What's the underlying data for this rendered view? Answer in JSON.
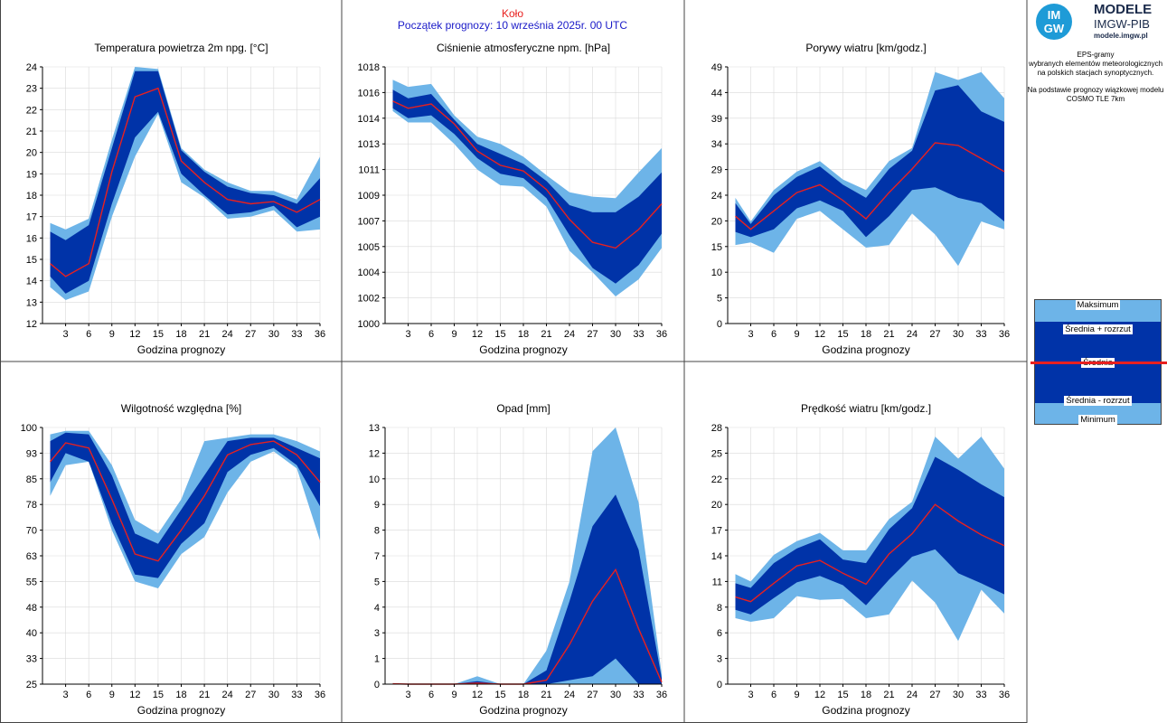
{
  "header": {
    "station": "Koło",
    "forecast_start": "Początek prognozy: 10 września 2025r. 00 UTC"
  },
  "logo": {
    "circle_top": "IM",
    "circle_bottom": "GW",
    "line1": "MODELE",
    "line2": "IMGW-PIB",
    "line3": "modele.imgw.pl"
  },
  "description": {
    "lines1": [
      "EPS-gramy",
      "wybranych elementów meteorologicznych",
      "na polskich stacjach  synoptycznych."
    ],
    "lines2": [
      "Na podstawie prognozy wiązkowej modelu",
      "COSMO TLE 7km"
    ]
  },
  "legend": {
    "max": "Maksimum",
    "mean_plus": "Średnia + rozrzut",
    "mean": "Średnia",
    "mean_minus": "Średnia - rozrzut",
    "min": "Minimum"
  },
  "colors": {
    "outer_band": "#6db4e8",
    "inner_band": "#0033a8",
    "mean_line": "#e8201f",
    "station_title": "#e8201f",
    "forecast_title": "#1a1ac8",
    "grid": "#d9d9d9"
  },
  "chart_data": [
    {
      "id": "temperature",
      "type": "area",
      "title": "Temperatura powietrza 2m npg. [°C]",
      "xlabel": "Godzina prognozy",
      "ylabel": "",
      "ylim": [
        12,
        24
      ],
      "yticks": [
        "12",
        "13",
        "14",
        "15",
        "16",
        "17",
        "18",
        "19",
        "20",
        "21",
        "22",
        "23",
        "24"
      ],
      "ytick_values": [
        12,
        13,
        14,
        15,
        16,
        17,
        18,
        19,
        20,
        21,
        22,
        23,
        24
      ],
      "x": [
        1,
        3,
        6,
        9,
        12,
        15,
        18,
        21,
        24,
        27,
        30,
        33,
        36
      ],
      "xticks": [
        3,
        6,
        9,
        12,
        15,
        18,
        21,
        24,
        27,
        30,
        33,
        36
      ],
      "series": [
        {
          "name": "Maksimum",
          "values": [
            16.7,
            16.4,
            16.9,
            20.6,
            24.0,
            23.9,
            20.2,
            19.2,
            18.6,
            18.2,
            18.2,
            17.8,
            19.8
          ]
        },
        {
          "name": "Średnia + rozrzut",
          "values": [
            16.3,
            15.9,
            16.6,
            20.2,
            23.8,
            23.8,
            20.1,
            19.1,
            18.4,
            18.1,
            18.0,
            17.6,
            18.8
          ]
        },
        {
          "name": "Średnia",
          "values": [
            14.8,
            14.2,
            14.8,
            19.1,
            22.6,
            23.0,
            19.6,
            18.6,
            17.8,
            17.6,
            17.7,
            17.2,
            17.8
          ]
        },
        {
          "name": "Średnia - rozrzut",
          "values": [
            14.2,
            13.4,
            14.0,
            17.6,
            20.7,
            21.9,
            19.0,
            18.0,
            17.1,
            17.2,
            17.5,
            16.5,
            17.0
          ]
        },
        {
          "name": "Minimum",
          "values": [
            13.7,
            13.1,
            13.5,
            17.0,
            19.8,
            21.8,
            18.6,
            17.9,
            16.9,
            17.0,
            17.3,
            16.3,
            16.4
          ]
        }
      ]
    },
    {
      "id": "pressure",
      "type": "area",
      "title": "Ciśnienie atmosferyczne npm. [hPa]",
      "xlabel": "Godzina prognozy",
      "ylabel": "",
      "ylim": [
        1000,
        1018
      ],
      "yticks": [
        "1000",
        "1002",
        "1004",
        "1005",
        "1007",
        "1009",
        "1011",
        "1013",
        "1014",
        "1016",
        "1018"
      ],
      "ytick_values": [
        1000,
        1001.8,
        1003.6,
        1005.4,
        1007.2,
        1009,
        1010.8,
        1012.6,
        1014.4,
        1016.2,
        1018
      ],
      "x": [
        1,
        3,
        6,
        9,
        12,
        15,
        18,
        21,
        24,
        27,
        30,
        33,
        36
      ],
      "xticks": [
        3,
        6,
        9,
        12,
        15,
        18,
        21,
        24,
        27,
        30,
        33,
        36
      ],
      "series": [
        {
          "name": "Maksimum",
          "values": [
            1017.1,
            1016.6,
            1016.8,
            1014.6,
            1013.1,
            1012.6,
            1011.7,
            1010.4,
            1009.2,
            1008.9,
            1008.8,
            1010.6,
            1012.3
          ]
        },
        {
          "name": "Średnia + rozrzut",
          "values": [
            1016.4,
            1015.8,
            1016.1,
            1014.3,
            1012.6,
            1011.9,
            1011.2,
            1010.0,
            1008.3,
            1007.8,
            1007.8,
            1008.9,
            1010.6
          ]
        },
        {
          "name": "Średnia",
          "values": [
            1015.6,
            1015.1,
            1015.4,
            1014.0,
            1012.1,
            1011.1,
            1010.7,
            1009.4,
            1007.3,
            1005.7,
            1005.3,
            1006.6,
            1008.4
          ]
        },
        {
          "name": "Średnia - rozrzut",
          "values": [
            1015.1,
            1014.4,
            1014.6,
            1013.3,
            1011.6,
            1010.5,
            1010.2,
            1008.8,
            1006.2,
            1003.9,
            1002.8,
            1004.1,
            1006.3
          ]
        },
        {
          "name": "Minimum",
          "values": [
            1014.9,
            1014.1,
            1014.1,
            1012.6,
            1010.8,
            1009.7,
            1009.6,
            1008.2,
            1005.1,
            1003.6,
            1001.9,
            1003.1,
            1005.3
          ]
        }
      ]
    },
    {
      "id": "gusts",
      "type": "area",
      "title": "Porywy wiatru [km/godz.]",
      "xlabel": "Godzina prognozy",
      "ylabel": "",
      "ylim": [
        0,
        49
      ],
      "yticks": [
        "0",
        "5",
        "10",
        "15",
        "20",
        "24",
        "29",
        "34",
        "39",
        "44",
        "49"
      ],
      "ytick_values": [
        0,
        4.9,
        9.8,
        14.7,
        19.6,
        24.5,
        29.4,
        34.3,
        39.2,
        44.1,
        49
      ],
      "x": [
        1,
        3,
        6,
        9,
        12,
        15,
        18,
        21,
        24,
        27,
        30,
        33,
        36
      ],
      "xticks": [
        3,
        6,
        9,
        12,
        15,
        18,
        21,
        24,
        27,
        30,
        33,
        36
      ],
      "series": [
        {
          "name": "Maksimum",
          "values": [
            24.0,
            19.5,
            25.5,
            29.0,
            31.0,
            27.5,
            25.5,
            31.0,
            33.5,
            48.0,
            46.5,
            48.0,
            43.0
          ]
        },
        {
          "name": "Średnia + rozrzut",
          "values": [
            23.0,
            19.0,
            24.5,
            28.0,
            30.0,
            26.5,
            24.0,
            29.5,
            33.0,
            44.5,
            45.5,
            40.5,
            38.5
          ]
        },
        {
          "name": "Średnia",
          "values": [
            20.5,
            18.0,
            21.5,
            25.0,
            26.5,
            23.5,
            20.0,
            25.0,
            29.5,
            34.5,
            34.0,
            31.5,
            29.0
          ]
        },
        {
          "name": "Średnia - rozrzut",
          "values": [
            17.5,
            16.5,
            18.0,
            22.0,
            23.5,
            21.5,
            16.5,
            20.5,
            25.5,
            26.0,
            24.0,
            23.0,
            19.5
          ]
        },
        {
          "name": "Minimum",
          "values": [
            15.0,
            15.5,
            13.5,
            20.0,
            21.5,
            18.0,
            14.5,
            15.0,
            21.0,
            17.0,
            11.0,
            19.5,
            18.0
          ]
        }
      ]
    },
    {
      "id": "humidity",
      "type": "area",
      "title": "Wilgotność względna [%]",
      "xlabel": "Godzina prognozy",
      "ylabel": "",
      "ylim": [
        25,
        100
      ],
      "yticks": [
        "25",
        "33",
        "40",
        "48",
        "55",
        "63",
        "70",
        "78",
        "85",
        "93",
        "100"
      ],
      "ytick_values": [
        25,
        32.5,
        40,
        47.5,
        55,
        62.5,
        70,
        77.5,
        85,
        92.5,
        100
      ],
      "x": [
        1,
        3,
        6,
        9,
        12,
        15,
        18,
        21,
        24,
        27,
        30,
        33,
        36
      ],
      "xticks": [
        3,
        6,
        9,
        12,
        15,
        18,
        21,
        24,
        27,
        30,
        33,
        36
      ],
      "series": [
        {
          "name": "Maksimum",
          "values": [
            98,
            99,
            99,
            89,
            73,
            69,
            79,
            96,
            97,
            98,
            98,
            96,
            93
          ]
        },
        {
          "name": "Średnia + rozrzut",
          "values": [
            96,
            98.5,
            98,
            86,
            69,
            66,
            76,
            86,
            96,
            97,
            97,
            94,
            91
          ]
        },
        {
          "name": "Średnia",
          "values": [
            90,
            95.5,
            94,
            79,
            63,
            61,
            70,
            80,
            92,
            95,
            96,
            92,
            84
          ]
        },
        {
          "name": "Średnia - rozrzut",
          "values": [
            84,
            92.5,
            90,
            72,
            57,
            56,
            66,
            72,
            87,
            92,
            94,
            89,
            77
          ]
        },
        {
          "name": "Minimum",
          "values": [
            80,
            89,
            90,
            70,
            55,
            53,
            63,
            68,
            81,
            90,
            93,
            88,
            67
          ]
        }
      ]
    },
    {
      "id": "precipitation",
      "type": "area",
      "title": "Opad [mm]",
      "xlabel": "Godzina prognozy",
      "ylabel": "",
      "ylim": [
        0,
        13
      ],
      "yticks": [
        "0",
        "1",
        "3",
        "4",
        "5",
        "7",
        "8",
        "9",
        "10",
        "12",
        "13"
      ],
      "ytick_values": [
        0,
        1.3,
        2.6,
        3.9,
        5.2,
        6.5,
        7.8,
        9.1,
        10.4,
        11.7,
        13
      ],
      "x": [
        1,
        3,
        6,
        9,
        12,
        15,
        18,
        21,
        24,
        27,
        30,
        33,
        36
      ],
      "xticks": [
        3,
        6,
        9,
        12,
        15,
        18,
        21,
        24,
        27,
        30,
        33,
        36
      ],
      "series": [
        {
          "name": "Maksimum",
          "values": [
            0.05,
            0,
            0,
            0,
            0.4,
            0,
            0,
            1.7,
            5.2,
            11.8,
            13.0,
            9.2,
            0.5
          ]
        },
        {
          "name": "Średnia + rozrzut",
          "values": [
            0.03,
            0,
            0,
            0,
            0.15,
            0,
            0,
            0.7,
            4.2,
            8.0,
            9.6,
            6.8,
            0.3
          ]
        },
        {
          "name": "Średnia",
          "values": [
            0.02,
            0,
            0,
            0,
            0.05,
            0,
            0,
            0.2,
            2.0,
            4.2,
            5.8,
            2.8,
            0.1
          ]
        },
        {
          "name": "Średnia - rozrzut",
          "values": [
            0,
            0,
            0,
            0,
            0,
            0,
            0,
            0,
            0.2,
            0.4,
            1.3,
            0,
            0
          ]
        },
        {
          "name": "Minimum",
          "values": [
            0,
            0,
            0,
            0,
            0,
            0,
            0,
            0,
            0,
            0,
            0,
            0,
            0
          ]
        }
      ]
    },
    {
      "id": "wind",
      "type": "area",
      "title": "Prędkość wiatru [km/godz.]",
      "xlabel": "Godzina prognozy",
      "ylabel": "",
      "ylim": [
        0,
        28
      ],
      "yticks": [
        "0",
        "3",
        "6",
        "8",
        "11",
        "14",
        "17",
        "20",
        "22",
        "25",
        "28"
      ],
      "ytick_values": [
        0,
        2.8,
        5.6,
        8.4,
        11.2,
        14,
        16.8,
        19.6,
        22.4,
        25.2,
        28
      ],
      "x": [
        1,
        3,
        6,
        9,
        12,
        15,
        18,
        21,
        24,
        27,
        30,
        33,
        36
      ],
      "xticks": [
        3,
        6,
        9,
        12,
        15,
        18,
        21,
        24,
        27,
        30,
        33,
        36
      ],
      "series": [
        {
          "name": "Maksimum",
          "values": [
            12.0,
            11.2,
            14.1,
            15.6,
            16.5,
            14.6,
            14.6,
            18.0,
            19.9,
            27.0,
            24.6,
            27.0,
            23.5
          ]
        },
        {
          "name": "Średnia + rozrzut",
          "values": [
            11.0,
            10.5,
            13.2,
            14.8,
            15.8,
            13.6,
            13.2,
            16.9,
            19.2,
            24.8,
            23.4,
            21.8,
            20.4
          ]
        },
        {
          "name": "Średnia",
          "values": [
            9.5,
            9.0,
            11.0,
            12.9,
            13.5,
            12.1,
            10.9,
            14.2,
            16.4,
            19.6,
            17.8,
            16.3,
            15.1
          ]
        },
        {
          "name": "Średnia - rozrzut",
          "values": [
            8.1,
            7.6,
            9.4,
            11.1,
            11.8,
            10.8,
            8.6,
            11.4,
            13.9,
            14.7,
            12.1,
            11.0,
            9.8
          ]
        },
        {
          "name": "Minimum",
          "values": [
            7.2,
            6.8,
            7.2,
            9.6,
            9.2,
            9.3,
            7.2,
            7.6,
            11.3,
            8.9,
            4.7,
            10.3,
            7.7
          ]
        }
      ]
    }
  ]
}
